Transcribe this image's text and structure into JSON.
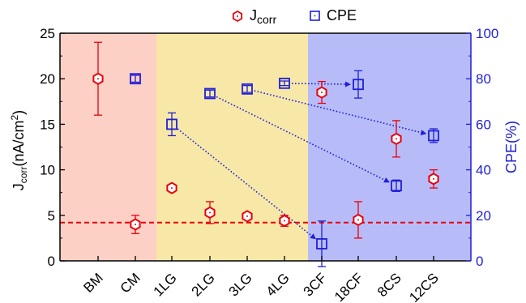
{
  "chart_data": {
    "type": "scatter",
    "categories": [
      "BM",
      "CM",
      "1LG",
      "2LG",
      "3LG",
      "4LG",
      "3CF",
      "18CF",
      "8CS",
      "12CS"
    ],
    "left_axis": {
      "label_main": "J",
      "label_sub": "corr",
      "label_rest": "(nA/cm",
      "label_sup": "2",
      "label_end": ")",
      "ylim": [
        0,
        25
      ],
      "ticks": [
        "0",
        "5",
        "10",
        "15",
        "20",
        "25"
      ]
    },
    "right_axis": {
      "label": "CPE(%)",
      "ylim": [
        0,
        100
      ],
      "ticks": [
        "0",
        "20",
        "40",
        "60",
        "80",
        "100"
      ]
    },
    "series": [
      {
        "name_main": "J",
        "name_sub": "corr",
        "axis": "left",
        "marker": "hexagon",
        "color": "#e8000b",
        "points": [
          {
            "x": "BM",
            "y": 20.0,
            "err": 4.0
          },
          {
            "x": "CM",
            "y": 4.0,
            "err": 1.0
          },
          {
            "x": "1LG",
            "y": 8.0,
            "err": 0.4
          },
          {
            "x": "2LG",
            "y": 5.3,
            "err": 1.2
          },
          {
            "x": "3LG",
            "y": 4.9,
            "err": 0.3
          },
          {
            "x": "4LG",
            "y": 4.4,
            "err": 0.6
          },
          {
            "x": "3CF",
            "y": 18.5,
            "err": 1.2
          },
          {
            "x": "18CF",
            "y": 4.5,
            "err": 2.0
          },
          {
            "x": "8CS",
            "y": 13.4,
            "err": 2.0
          },
          {
            "x": "12CS",
            "y": 9.0,
            "err": 1.0
          }
        ]
      },
      {
        "name": "CPE",
        "axis": "right",
        "marker": "square",
        "color": "#1f1fd6",
        "points": [
          {
            "x": "CM",
            "y": 80.0,
            "err": 1.5
          },
          {
            "x": "1LG",
            "y": 60.0,
            "err": 5.0
          },
          {
            "x": "2LG",
            "y": 73.5,
            "err": 1.5
          },
          {
            "x": "3LG",
            "y": 75.5,
            "err": 1.5
          },
          {
            "x": "4LG",
            "y": 78.0,
            "err": 1.0
          },
          {
            "x": "3CF",
            "y": 7.5,
            "err": 10.0
          },
          {
            "x": "18CF",
            "y": 77.5,
            "err": 6.0
          },
          {
            "x": "8CS",
            "y": 33.0,
            "err": 2.5
          },
          {
            "x": "12CS",
            "y": 55.0,
            "err": 3.0
          }
        ]
      }
    ],
    "arrows": [
      {
        "from": "1LG",
        "to": "3CF"
      },
      {
        "from": "2LG",
        "to": "8CS"
      },
      {
        "from": "3LG",
        "to": "12CS"
      },
      {
        "from": "4LG",
        "to": "18CF"
      }
    ],
    "reference_line": {
      "axis": "left",
      "y": 4.2,
      "color": "#e8000b",
      "style": "dashed"
    },
    "regions": [
      {
        "from": "BM",
        "to": "CM",
        "color": "#fdd0c6"
      },
      {
        "from": "1LG",
        "to": "4LG",
        "color": "#f8e8a8"
      },
      {
        "from": "3CF",
        "to": "12CS",
        "color": "#b7bcf8"
      }
    ],
    "legend_position": "top-center",
    "grid": false
  }
}
